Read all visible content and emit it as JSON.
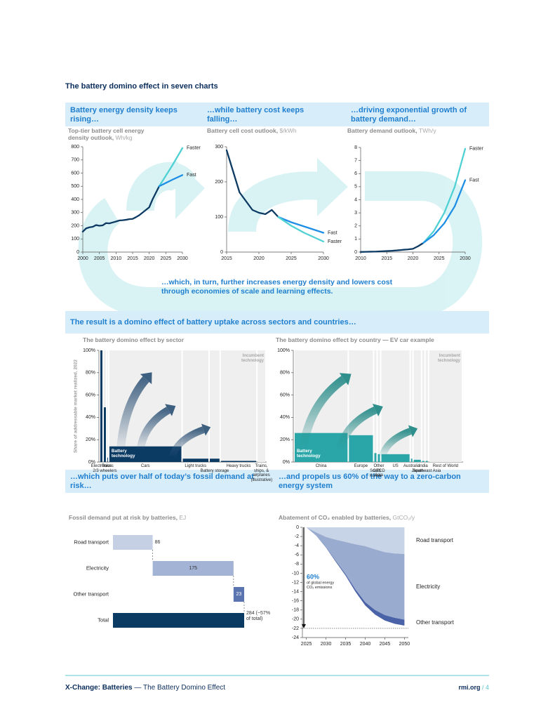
{
  "title": "The battery domino effect in seven charts",
  "banner_top": [
    "Battery energy density keeps rising…",
    "…while battery cost keeps falling…",
    "…driving exponential growth of battery demand…"
  ],
  "loop_text": "…which, in turn, further increases energy density and lowers cost through economies of scale and learning effects.",
  "banner_middle": "The result is a domino effect of battery uptake across sectors and countries…",
  "banner_bottom": [
    "…which puts over half of today’s fossil demand at risk…",
    "…and propels us 60% of the way to a zero-carbon energy system"
  ],
  "footer": {
    "report": "X-Change: Batteries",
    "subtitle": "— The Battery Domino Effect",
    "site": "rmi.org",
    "page": "/ 4"
  },
  "chart_data": [
    {
      "type": "line",
      "title": "Top-tier battery cell energy density outlook,",
      "unit": "Wh/kg",
      "xlim": [
        2000,
        2030
      ],
      "xticks": [
        2000,
        2005,
        2010,
        2015,
        2020,
        2025,
        2030
      ],
      "ylim": [
        0,
        800
      ],
      "yticks": [
        0,
        100,
        200,
        300,
        400,
        500,
        600,
        700,
        800
      ],
      "series": [
        {
          "color": "#0d3a63",
          "x": [
            2000,
            2001,
            2002,
            2003,
            2004,
            2005,
            2006,
            2007,
            2008,
            2009,
            2010,
            2011,
            2012,
            2013,
            2014,
            2015,
            2016,
            2017,
            2018,
            2019,
            2020,
            2021,
            2022,
            2023
          ],
          "values": [
            155,
            180,
            188,
            192,
            205,
            200,
            203,
            220,
            218,
            225,
            232,
            240,
            242,
            245,
            250,
            252,
            265,
            280,
            300,
            320,
            340,
            400,
            450,
            500
          ]
        },
        {
          "name": "Faster",
          "color": "#4fd1d4",
          "x": [
            2023,
            2025,
            2027,
            2030
          ],
          "values": [
            500,
            580,
            660,
            790
          ]
        },
        {
          "name": "Fast",
          "color": "#1f8fe6",
          "x": [
            2023,
            2025,
            2027,
            2030
          ],
          "values": [
            500,
            525,
            550,
            585
          ]
        }
      ]
    },
    {
      "type": "line",
      "title": "Battery cell cost outlook,",
      "unit": "$/kWh",
      "xlim": [
        2015,
        2030
      ],
      "xticks": [
        2015,
        2020,
        2025,
        2030
      ],
      "ylim": [
        0,
        300
      ],
      "yticks": [
        0,
        100,
        200,
        300
      ],
      "series": [
        {
          "color": "#0d3a63",
          "x": [
            2015,
            2016,
            2017,
            2018,
            2019,
            2020,
            2021,
            2022,
            2023
          ],
          "values": [
            290,
            230,
            170,
            145,
            120,
            112,
            108,
            120,
            100
          ]
        },
        {
          "name": "Fast",
          "color": "#1f8fe6",
          "x": [
            2023,
            2025,
            2027,
            2030
          ],
          "values": [
            100,
            85,
            73,
            55
          ]
        },
        {
          "name": "Faster",
          "color": "#4fd1d4",
          "x": [
            2023,
            2025,
            2027,
            2030
          ],
          "values": [
            100,
            75,
            55,
            30
          ]
        }
      ]
    },
    {
      "type": "line",
      "title": "Battery demand outlook,",
      "unit": "TWh/y",
      "xlim": [
        2010,
        2030
      ],
      "xticks": [
        2010,
        2015,
        2020,
        2025,
        2030
      ],
      "ylim": [
        0,
        8
      ],
      "yticks": [
        0,
        1,
        2,
        3,
        4,
        5,
        6,
        7,
        8
      ],
      "series": [
        {
          "color": "#0d3a63",
          "x": [
            2010,
            2011,
            2012,
            2013,
            2014,
            2015,
            2016,
            2017,
            2018,
            2019,
            2020,
            2021,
            2022
          ],
          "values": [
            0.01,
            0.02,
            0.03,
            0.04,
            0.06,
            0.08,
            0.1,
            0.13,
            0.17,
            0.2,
            0.25,
            0.45,
            0.7
          ]
        },
        {
          "name": "Faster",
          "color": "#4fd1d4",
          "x": [
            2022,
            2024,
            2026,
            2028,
            2030
          ],
          "values": [
            0.7,
            1.6,
            3.0,
            5.0,
            7.9
          ]
        },
        {
          "name": "Fast",
          "color": "#1f8fe6",
          "x": [
            2022,
            2024,
            2026,
            2028,
            2030
          ],
          "values": [
            0.7,
            1.3,
            2.2,
            3.5,
            5.5
          ]
        }
      ]
    },
    {
      "type": "marimekko",
      "title": "The battery domino effect by sector",
      "ylabel": "Share of addressable market realized, 2022",
      "ylim": [
        0,
        100
      ],
      "yticks": [
        {
          "value": 0,
          "label": "0%"
        },
        {
          "value": 20,
          "label": "20%"
        },
        {
          "value": 40,
          "label": "40%"
        },
        {
          "value": 60,
          "label": "60%"
        },
        {
          "value": 80,
          "label": "80%"
        },
        {
          "value": 100,
          "label": "100%"
        }
      ],
      "categories": [
        "Electronics",
        "2/3 wheelers",
        "Buses",
        "Cars",
        "Light trucks",
        "Battery storage",
        "Heavy trucks",
        "Trains, ships, & airplanes (illustrative)"
      ],
      "widths": [
        3,
        3,
        1,
        104,
        37,
        14,
        51,
        11
      ],
      "values": [
        100,
        49,
        4,
        14,
        3,
        3,
        1,
        0
      ],
      "color": "#0b3a63",
      "annotations": [
        "Incumbent technology",
        "Battery technology"
      ]
    },
    {
      "type": "marimekko",
      "title": "The battery domino effect by country — EV car example",
      "ylim": [
        0,
        100
      ],
      "yticks": [
        {
          "value": 0,
          "label": "0%"
        },
        {
          "value": 20,
          "label": "20%"
        },
        {
          "value": 40,
          "label": "40%"
        },
        {
          "value": 60,
          "label": "60%"
        },
        {
          "value": 80,
          "label": "80%"
        },
        {
          "value": 100,
          "label": "100%"
        }
      ],
      "categories": [
        "China",
        "Europe",
        "South Korea",
        "Other OECD Asia",
        "US",
        "Australia",
        "Japan",
        "India",
        "Southeast Asia",
        "Rest of World"
      ],
      "widths": [
        75,
        34,
        3,
        3,
        40,
        2,
        10,
        3,
        3,
        46
      ],
      "values": [
        26,
        24,
        8,
        7,
        7,
        3,
        2,
        1,
        1,
        0
      ],
      "color": "#2aa6a8",
      "annotations": [
        "Incumbent technology",
        "Battery technology"
      ]
    },
    {
      "type": "waterfall",
      "title": "Fossil demand put at risk by batteries,",
      "unit": "EJ",
      "categories": [
        "Road transport",
        "Electricity",
        "Other transport",
        "Total"
      ],
      "values": [
        86,
        175,
        23,
        284
      ],
      "value_labels": [
        "86",
        "175",
        "23",
        "284 (~57% of total)"
      ],
      "colors": [
        "#c6d0e5",
        "#a3b3d6",
        "#5a74b0",
        "#0b3a63"
      ]
    },
    {
      "type": "area",
      "title": "Abatement of CO₂ enabled by batteries,",
      "unit": "GtCO₂/y",
      "x": [
        2025,
        2027.5,
        2030,
        2032.5,
        2035,
        2037.5,
        2040,
        2042.5,
        2045,
        2047.5,
        2050
      ],
      "xlim": [
        2024,
        2051
      ],
      "xticks": [
        2025,
        2030,
        2035,
        2040,
        2045,
        2050
      ],
      "ylim": [
        -24,
        0
      ],
      "yticks": [
        0,
        -2,
        -4,
        -6,
        -8,
        -10,
        -12,
        -14,
        -16,
        -18,
        -20,
        -22,
        -24
      ],
      "series": [
        {
          "name": "Road transport",
          "color": "#c7d3e6",
          "values": [
            0,
            -1.1,
            -2.1,
            -2.7,
            -3.2,
            -3.7,
            -4.1,
            -4.8,
            -5.4,
            -5.7,
            -5.8
          ]
        },
        {
          "name": "Electricity",
          "color": "#9aabd0",
          "values": [
            0,
            -0.65,
            -2.2,
            -4.6,
            -7.0,
            -9.8,
            -12.2,
            -13.2,
            -13.7,
            -14.0,
            -14.3
          ]
        },
        {
          "name": "Other transport",
          "color": "#4a62a8",
          "values": [
            0,
            -0.05,
            -0.1,
            -0.2,
            -0.3,
            -0.5,
            -0.7,
            -1.0,
            -1.2,
            -1.3,
            -1.3
          ]
        }
      ],
      "reference_line": -22,
      "annotation": {
        "headline": "60%",
        "text": [
          "of global energy",
          "CO₂ emissions"
        ]
      }
    }
  ]
}
